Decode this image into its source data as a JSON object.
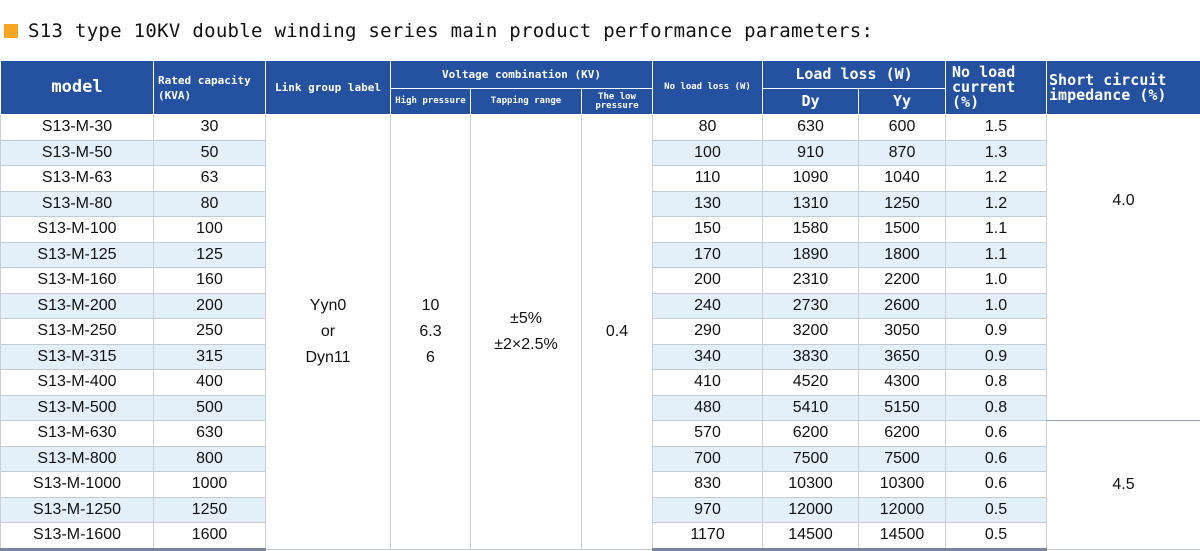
{
  "title": "S13 type 10KV double winding series main product performance parameters:",
  "headers": {
    "model": "model",
    "rated_capacity": "Rated capacity",
    "rated_capacity_unit": "(KVA)",
    "link_group": "Link group label",
    "voltage_combination": "Voltage combination (KV)",
    "high_pressure": "High pressure",
    "tapping_range": "Tapping range",
    "low_pressure": "The low pressure",
    "no_load_loss": "No load loss (W)",
    "load_loss": "Load loss (W)",
    "dy": "Dy",
    "yy": "Yy",
    "no_load_current_1": "No load",
    "no_load_current_2": "current (%)",
    "short_circuit_1": "Short circuit",
    "short_circuit_2": "impedance (%)"
  },
  "merged": {
    "link_group_1": "Yyn0",
    "link_group_2": "or",
    "link_group_3": "Dyn11",
    "high_1": "10",
    "high_2": "6.3",
    "high_3": "6",
    "tap_1": "±5%",
    "tap_2": "±2×2.5%",
    "low": "0.4",
    "impedance_1": "4.0",
    "impedance_2": "4.5"
  },
  "rows": [
    {
      "model": "S13-M-30",
      "capacity": "30",
      "no_load_loss": "80",
      "dy": "630",
      "yy": "600",
      "current": "1.5"
    },
    {
      "model": "S13-M-50",
      "capacity": "50",
      "no_load_loss": "100",
      "dy": "910",
      "yy": "870",
      "current": "1.3"
    },
    {
      "model": "S13-M-63",
      "capacity": "63",
      "no_load_loss": "110",
      "dy": "1090",
      "yy": "1040",
      "current": "1.2"
    },
    {
      "model": "S13-M-80",
      "capacity": "80",
      "no_load_loss": "130",
      "dy": "1310",
      "yy": "1250",
      "current": "1.2"
    },
    {
      "model": "S13-M-100",
      "capacity": "100",
      "no_load_loss": "150",
      "dy": "1580",
      "yy": "1500",
      "current": "1.1"
    },
    {
      "model": "S13-M-125",
      "capacity": "125",
      "no_load_loss": "170",
      "dy": "1890",
      "yy": "1800",
      "current": "1.1"
    },
    {
      "model": "S13-M-160",
      "capacity": "160",
      "no_load_loss": "200",
      "dy": "2310",
      "yy": "2200",
      "current": "1.0"
    },
    {
      "model": "S13-M-200",
      "capacity": "200",
      "no_load_loss": "240",
      "dy": "2730",
      "yy": "2600",
      "current": "1.0"
    },
    {
      "model": "S13-M-250",
      "capacity": "250",
      "no_load_loss": "290",
      "dy": "3200",
      "yy": "3050",
      "current": "0.9"
    },
    {
      "model": "S13-M-315",
      "capacity": "315",
      "no_load_loss": "340",
      "dy": "3830",
      "yy": "3650",
      "current": "0.9"
    },
    {
      "model": "S13-M-400",
      "capacity": "400",
      "no_load_loss": "410",
      "dy": "4520",
      "yy": "4300",
      "current": "0.8"
    },
    {
      "model": "S13-M-500",
      "capacity": "500",
      "no_load_loss": "480",
      "dy": "5410",
      "yy": "5150",
      "current": "0.8"
    },
    {
      "model": "S13-M-630",
      "capacity": "630",
      "no_load_loss": "570",
      "dy": "6200",
      "yy": "6200",
      "current": "0.6"
    },
    {
      "model": "S13-M-800",
      "capacity": "800",
      "no_load_loss": "700",
      "dy": "7500",
      "yy": "7500",
      "current": "0.6"
    },
    {
      "model": "S13-M-1000",
      "capacity": "1000",
      "no_load_loss": "830",
      "dy": "10300",
      "yy": "10300",
      "current": "0.6"
    },
    {
      "model": "S13-M-1250",
      "capacity": "1250",
      "no_load_loss": "970",
      "dy": "12000",
      "yy": "12000",
      "current": "0.5"
    },
    {
      "model": "S13-M-1600",
      "capacity": "1600",
      "no_load_loss": "1170",
      "dy": "14500",
      "yy": "14500",
      "current": "0.5"
    }
  ]
}
